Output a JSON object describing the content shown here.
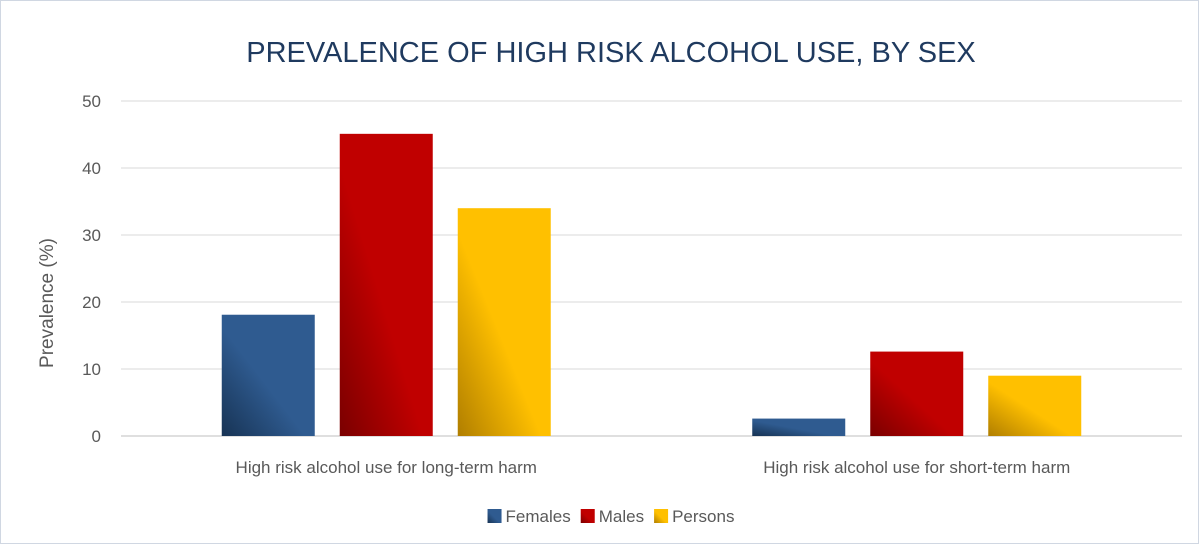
{
  "chart_data": {
    "type": "bar",
    "title": "PREVALENCE OF HIGH RISK ALCOHOL USE, BY SEX",
    "xlabel": "",
    "ylabel": "Prevalence (%)",
    "ylim": [
      0,
      50
    ],
    "yticks": [
      0,
      10,
      20,
      30,
      40,
      50
    ],
    "grid": true,
    "legend_position": "bottom",
    "categories": [
      "High risk alcohol use for long-term harm",
      "High risk alcohol use for short-term harm"
    ],
    "series": [
      {
        "name": "Females",
        "values": [
          18.1,
          2.6
        ],
        "color": "#2f5b90",
        "color_dark": "#173354"
      },
      {
        "name": "Males",
        "values": [
          45.1,
          12.6
        ],
        "color": "#c00000",
        "color_dark": "#7a0000"
      },
      {
        "name": "Persons",
        "values": [
          34.0,
          9.0
        ],
        "color": "#ffc000",
        "color_dark": "#b07e00"
      }
    ]
  }
}
